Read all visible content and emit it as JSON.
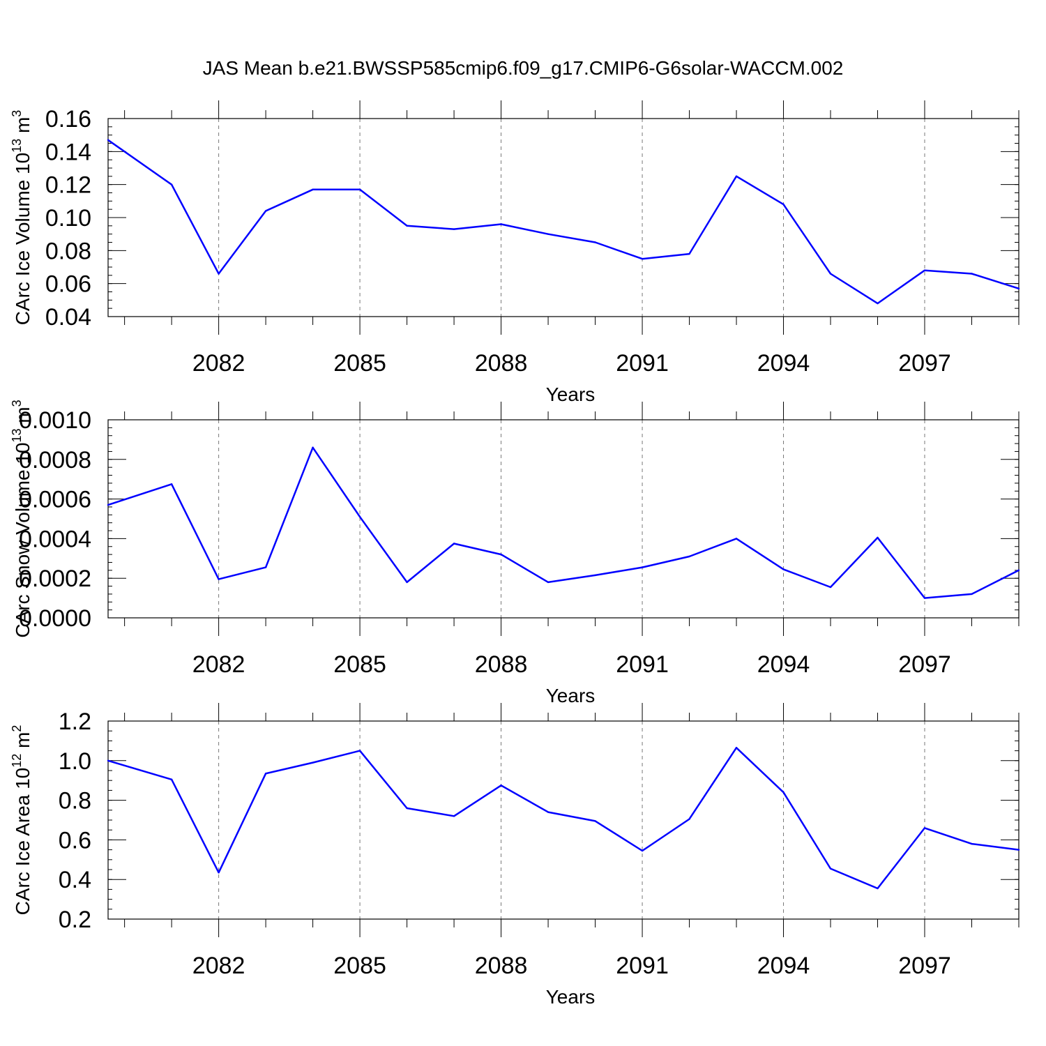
{
  "title": "JAS Mean b.e21.BWSSP585cmip6.f09_g17.CMIP6-G6solar-WACCM.002",
  "line_color": "#0000ff",
  "chart_data": [
    {
      "id": "ice-volume",
      "type": "line",
      "title": "",
      "xlabel": "Years",
      "ylabel": "CArc Ice Volume 10",
      "ylabel_sup": "13",
      "ylabel_unit": " m",
      "ylabel_unit_sup": "3",
      "xlim": [
        2079.65,
        2099
      ],
      "ylim": [
        0.04,
        0.16
      ],
      "x_ticks": [
        2082,
        2085,
        2088,
        2091,
        2094,
        2097
      ],
      "x_tick_labels": [
        "2082",
        "2085",
        "2088",
        "2091",
        "2094",
        "2097"
      ],
      "y_ticks": [
        0.04,
        0.06,
        0.08,
        0.1,
        0.12,
        0.14,
        0.16
      ],
      "y_tick_labels": [
        "0.04",
        "0.06",
        "0.08",
        "0.10",
        "0.12",
        "0.14",
        "0.16"
      ],
      "x_minor_step": 1,
      "y_minor_step": 0.005,
      "grid": "vertical dashed at major x ticks",
      "series": [
        {
          "name": "JAS Mean",
          "x": [
            2079.65,
            2081,
            2082,
            2083,
            2084,
            2085,
            2086,
            2087,
            2088,
            2089,
            2090,
            2091,
            2092,
            2093,
            2094,
            2095,
            2096,
            2097,
            2098,
            2099
          ],
          "values": [
            0.147,
            0.12,
            0.066,
            0.104,
            0.117,
            0.117,
            0.095,
            0.093,
            0.096,
            0.09,
            0.085,
            0.075,
            0.078,
            0.125,
            0.108,
            0.066,
            0.048,
            0.068,
            0.066,
            0.057
          ]
        }
      ]
    },
    {
      "id": "snow-volume",
      "type": "line",
      "title": "",
      "xlabel": "Years",
      "ylabel": "CArc Snow Volume 10",
      "ylabel_sup": "13",
      "ylabel_unit": " m",
      "ylabel_unit_sup": "3",
      "xlim": [
        2079.65,
        2099
      ],
      "ylim": [
        0.0,
        0.001
      ],
      "x_ticks": [
        2082,
        2085,
        2088,
        2091,
        2094,
        2097
      ],
      "x_tick_labels": [
        "2082",
        "2085",
        "2088",
        "2091",
        "2094",
        "2097"
      ],
      "y_ticks": [
        0.0,
        0.0002,
        0.0004,
        0.0006,
        0.0008,
        0.001
      ],
      "y_tick_labels": [
        "0.0000",
        "0.0002",
        "0.0004",
        "0.0006",
        "0.0008",
        "0.0010"
      ],
      "x_minor_step": 1,
      "y_minor_step": 4e-05,
      "grid": "vertical dashed at major x ticks",
      "series": [
        {
          "name": "JAS Mean",
          "x": [
            2079.65,
            2081,
            2082,
            2083,
            2084,
            2085,
            2086,
            2087,
            2088,
            2089,
            2090,
            2091,
            2092,
            2093,
            2094,
            2095,
            2096,
            2097,
            2098,
            2099
          ],
          "values": [
            0.00057,
            0.000675,
            0.000195,
            0.000255,
            0.00086,
            0.00051,
            0.00018,
            0.000375,
            0.00032,
            0.00018,
            0.000215,
            0.000255,
            0.00031,
            0.0004,
            0.000245,
            0.000155,
            0.000405,
            0.0001,
            0.00012,
            0.00024
          ]
        }
      ]
    },
    {
      "id": "ice-area",
      "type": "line",
      "title": "",
      "xlabel": "Years",
      "ylabel": "CArc Ice Area 10",
      "ylabel_sup": "12",
      "ylabel_unit": " m",
      "ylabel_unit_sup": "2",
      "xlim": [
        2079.65,
        2099
      ],
      "ylim": [
        0.2,
        1.2
      ],
      "x_ticks": [
        2082,
        2085,
        2088,
        2091,
        2094,
        2097
      ],
      "x_tick_labels": [
        "2082",
        "2085",
        "2088",
        "2091",
        "2094",
        "2097"
      ],
      "y_ticks": [
        0.2,
        0.4,
        0.6,
        0.8,
        1.0,
        1.2
      ],
      "y_tick_labels": [
        "0.2",
        "0.4",
        "0.6",
        "0.8",
        "1.0",
        "1.2"
      ],
      "x_minor_step": 1,
      "y_minor_step": 0.05,
      "grid": "vertical dashed at major x ticks",
      "series": [
        {
          "name": "JAS Mean",
          "x": [
            2079.65,
            2081,
            2082,
            2083,
            2084,
            2085,
            2086,
            2087,
            2088,
            2089,
            2090,
            2091,
            2092,
            2093,
            2094,
            2095,
            2096,
            2097,
            2098,
            2099
          ],
          "values": [
            1.0,
            0.905,
            0.435,
            0.935,
            0.99,
            1.05,
            0.76,
            0.72,
            0.875,
            0.74,
            0.695,
            0.545,
            0.705,
            1.065,
            0.84,
            0.455,
            0.355,
            0.66,
            0.58,
            0.55
          ]
        }
      ]
    }
  ]
}
